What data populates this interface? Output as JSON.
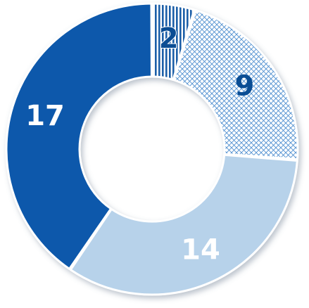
{
  "chart_data": {
    "type": "pie",
    "variant": "donut",
    "title": "",
    "legend": "none",
    "series": [
      {
        "values": [
          2,
          9,
          14,
          17
        ],
        "colors": [
          "#1f5fa8",
          "#4f8fd0",
          "#b7d2ea",
          "#0a59ab"
        ],
        "patterns": [
          "vertical-lines",
          "crosshatch",
          "solid",
          "solid"
        ],
        "label_colors": [
          "#0a4d94",
          "#0a4d94",
          "#ffffff",
          "#ffffff"
        ]
      }
    ],
    "data_labels": [
      "2",
      "9",
      "14",
      "17"
    ]
  }
}
